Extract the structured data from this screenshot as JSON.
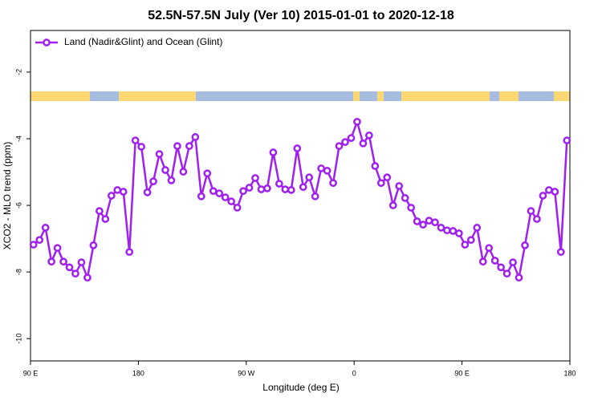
{
  "chart_data": {
    "type": "line",
    "title": "52.5N-57.5N July (Ver 10)   2015-01-01 to 2020-12-18",
    "xlabel": "Longitude (deg E)",
    "ylabel": "XCO2 - MLO trend (ppm)",
    "xlim": [
      90,
      540
    ],
    "ylim": [
      -10.67,
      -0.75
    ],
    "xticks": [
      {
        "value": 90,
        "label": "90 E"
      },
      {
        "value": 180,
        "label": "180"
      },
      {
        "value": 270,
        "label": "90 W"
      },
      {
        "value": 360,
        "label": "0"
      },
      {
        "value": 450,
        "label": "90 E"
      },
      {
        "value": 540,
        "label": "180"
      }
    ],
    "yticks": [
      -2,
      -4,
      -6,
      -8,
      -10
    ],
    "legend": "top-left",
    "x": [
      92.5,
      97.5,
      102.5,
      107.5,
      112.5,
      117.5,
      122.5,
      127.5,
      132.5,
      137.5,
      142.5,
      147.5,
      152.5,
      157.5,
      162.5,
      167.5,
      172.5,
      177.5,
      182.5,
      187.5,
      192.5,
      197.5,
      202.5,
      207.5,
      212.5,
      217.5,
      222.5,
      227.5,
      232.5,
      237.5,
      242.5,
      247.5,
      252.5,
      257.5,
      262.5,
      267.5,
      272.5,
      277.5,
      282.5,
      287.5,
      292.5,
      297.5,
      302.5,
      307.5,
      312.5,
      317.5,
      322.5,
      327.5,
      332.5,
      337.5,
      342.5,
      347.5,
      352.5,
      357.5,
      362.5,
      367.5,
      372.5,
      377.5,
      382.5,
      387.5,
      392.5,
      397.5,
      402.5,
      407.5,
      412.5,
      417.5,
      422.5,
      427.5,
      432.5,
      437.5,
      442.5,
      447.5,
      452.5,
      457.5,
      462.5,
      467.5,
      472.5,
      477.5,
      482.5,
      487.5,
      492.5,
      497.5,
      502.5,
      507.5,
      512.5,
      517.5,
      522.5,
      527.5,
      532.5,
      537.5
    ],
    "series": [
      {
        "name": "Land (Nadir&Glint) and Ocean (Glint)",
        "color": "#a020f0",
        "values": [
          -7.18,
          -7.04,
          -6.67,
          -7.69,
          -7.28,
          -7.69,
          -7.86,
          -8.05,
          -7.71,
          -8.17,
          -7.2,
          -6.17,
          -6.41,
          -5.71,
          -5.54,
          -5.59,
          -7.4,
          -4.05,
          -4.24,
          -5.61,
          -5.28,
          -4.46,
          -4.94,
          -5.25,
          -4.22,
          -4.99,
          -4.22,
          -3.95,
          -5.73,
          -5.04,
          -5.57,
          -5.64,
          -5.76,
          -5.88,
          -6.07,
          -5.57,
          -5.47,
          -5.18,
          -5.52,
          -5.49,
          -4.41,
          -5.35,
          -5.52,
          -5.54,
          -4.29,
          -5.45,
          -5.16,
          -5.73,
          -4.89,
          -4.96,
          -5.33,
          -4.22,
          -4.1,
          -3.98,
          -3.49,
          -4.14,
          -3.9,
          -4.82,
          -5.33,
          -5.16,
          -6.0,
          -5.42,
          -5.78,
          -6.07,
          -6.48,
          -6.58,
          -6.46,
          -6.51,
          -6.67,
          -6.75,
          -6.77,
          -6.84,
          -7.18,
          -7.04,
          -6.67,
          -7.69,
          -7.28,
          -7.66,
          -7.86,
          -8.05,
          -7.71,
          -8.17,
          -7.2,
          -6.17,
          -6.41,
          -5.71,
          -5.54,
          -5.59,
          -7.4,
          -4.05
        ]
      }
    ]
  }
}
